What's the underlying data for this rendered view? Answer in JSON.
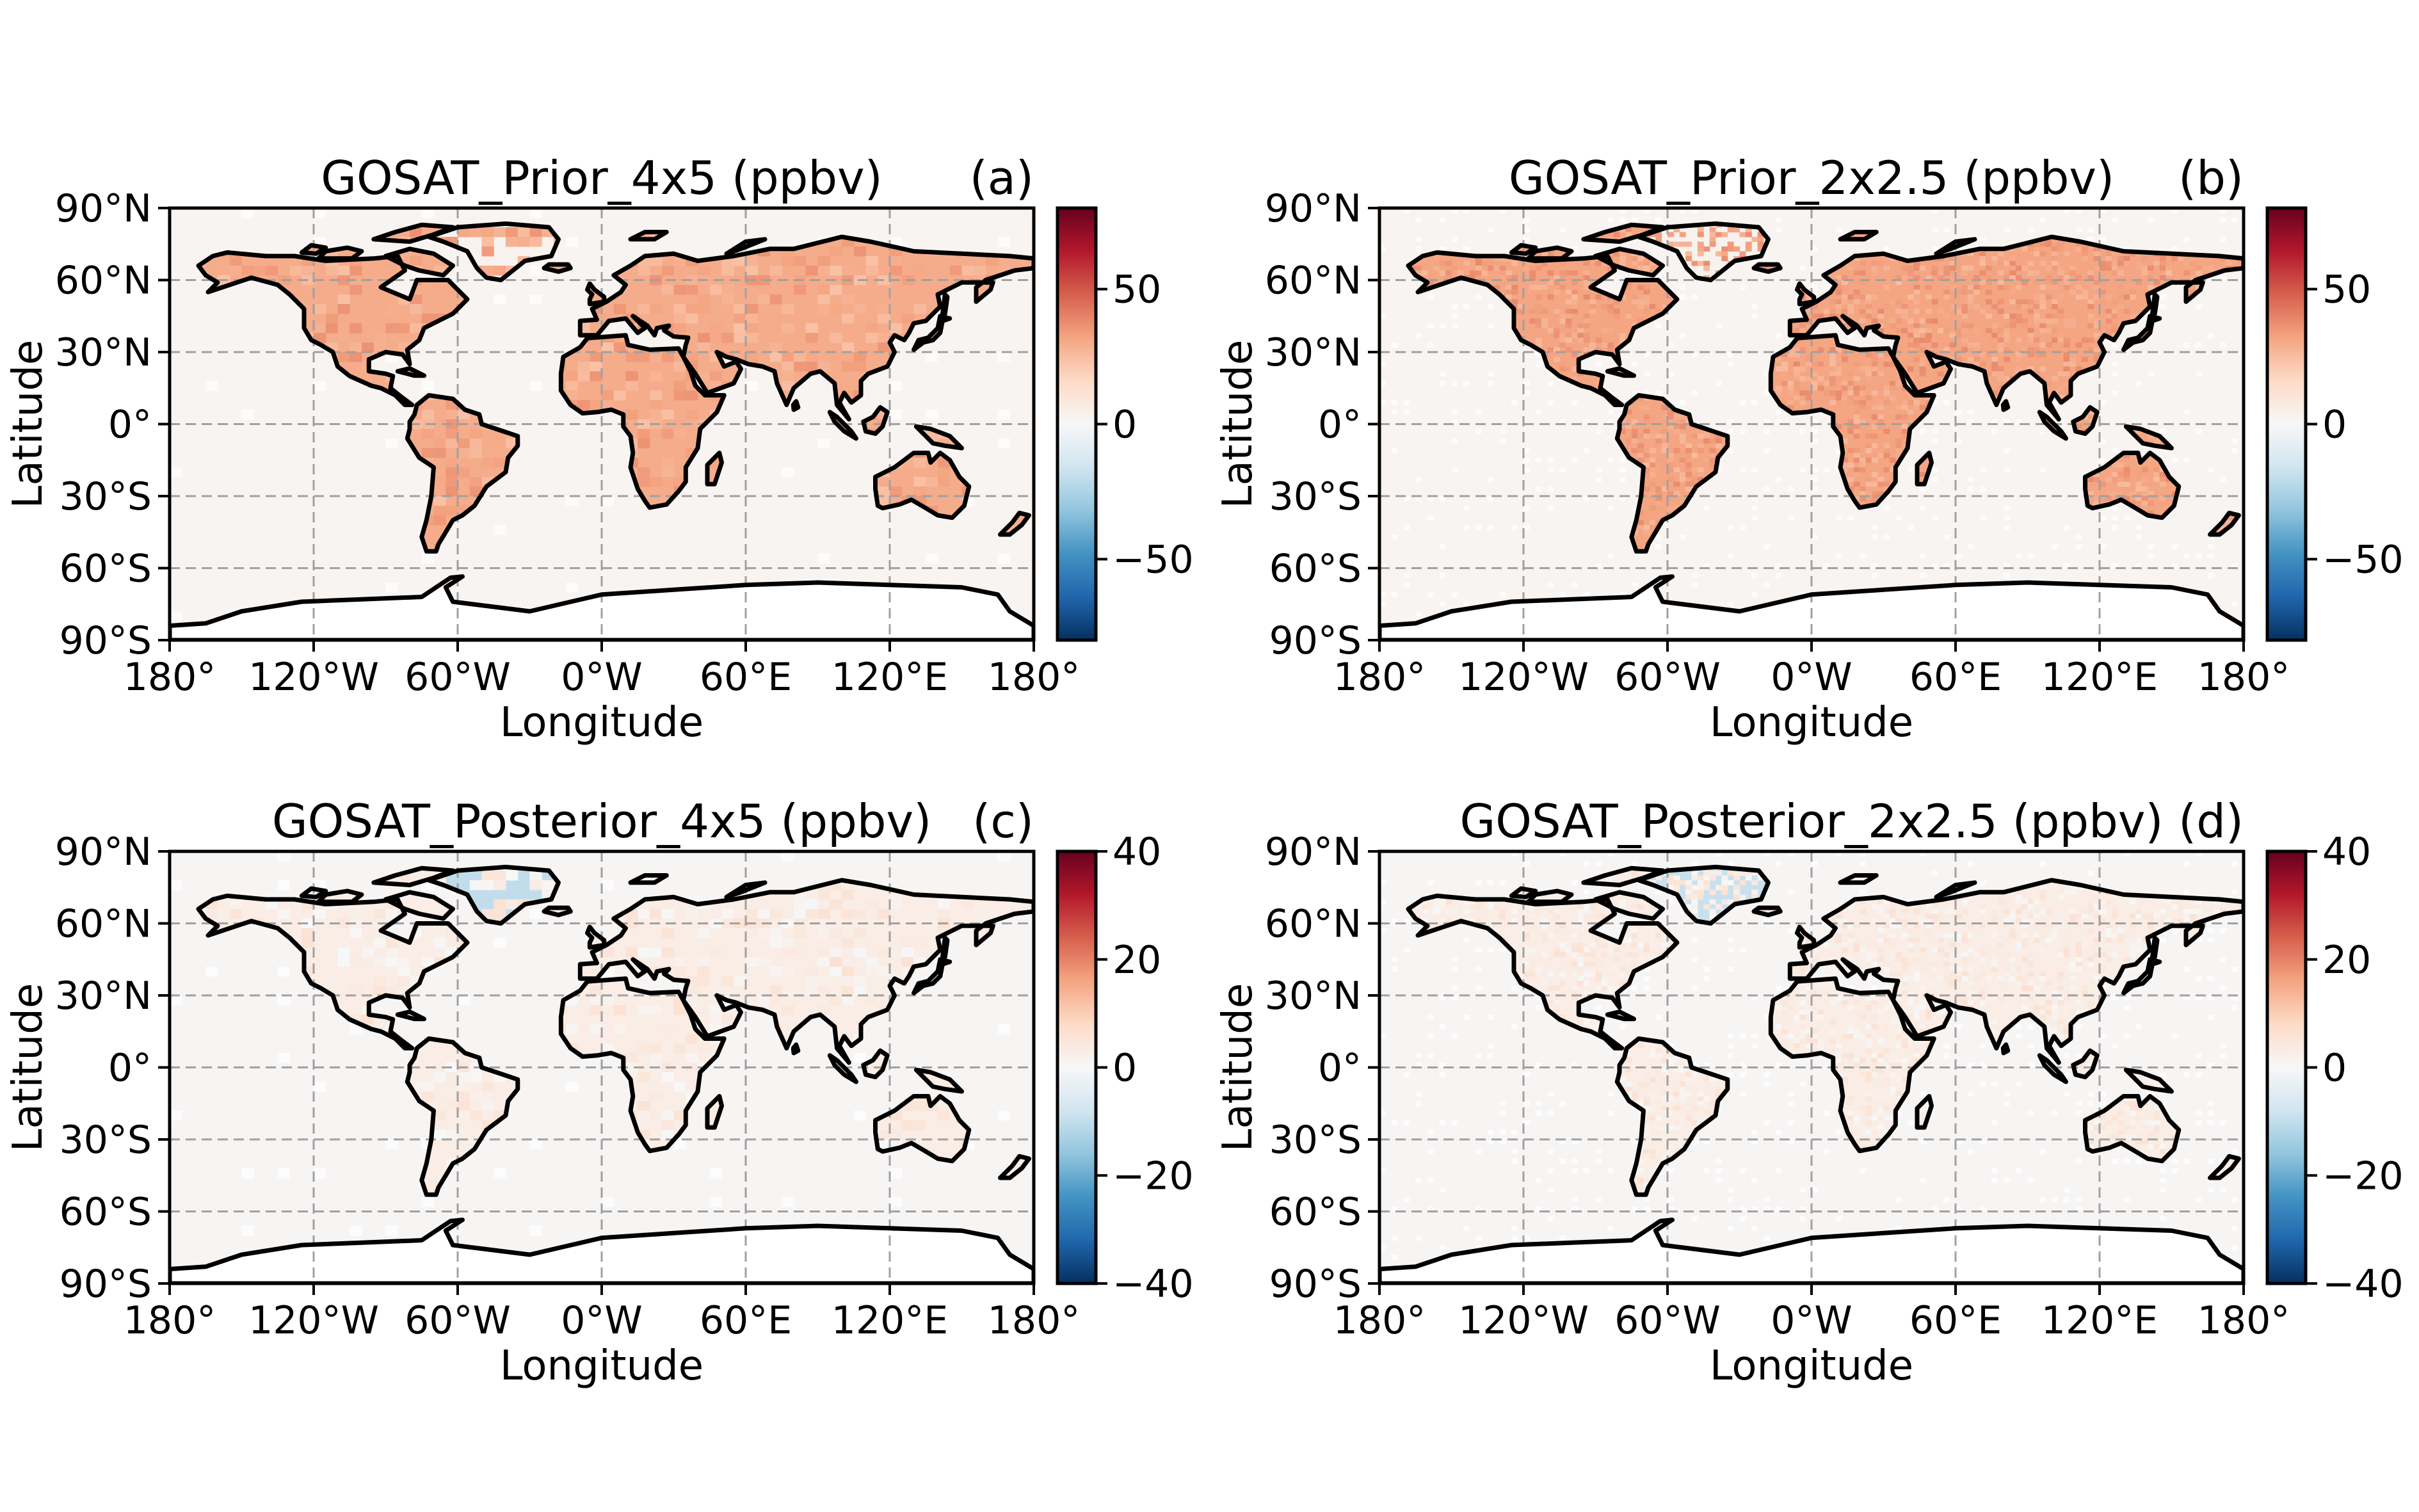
{
  "figure": {
    "panels": [
      {
        "id": "a",
        "title": "GOSAT_Prior_4x5 (ppbv)",
        "letter": "(a)",
        "xlabel": "Longitude",
        "ylabel": "Latitude",
        "xticks": [
          "180°",
          "120°W",
          "60°W",
          "0°W",
          "60°E",
          "120°E",
          "180°"
        ],
        "yticks": [
          "90°N",
          "60°N",
          "30°N",
          "0°",
          "30°S",
          "60°S",
          "90°S"
        ],
        "colorbar": {
          "ticks": [
            50,
            0,
            -50
          ],
          "tick_labels": [
            "50",
            "0",
            "−50"
          ],
          "vmin": -80,
          "vmax": 80
        },
        "land_anomaly": 30,
        "ocean_anomaly": 2,
        "greenland_anomaly": 3,
        "resolution": "4x5"
      },
      {
        "id": "b",
        "title": "GOSAT_Prior_2x2.5 (ppbv)",
        "letter": "(b)",
        "xlabel": "Longitude",
        "ylabel": "Latitude",
        "xticks": [
          "180°",
          "120°W",
          "60°W",
          "0°W",
          "60°E",
          "120°E",
          "180°"
        ],
        "yticks": [
          "90°N",
          "60°N",
          "30°N",
          "0°",
          "30°S",
          "60°S",
          "90°S"
        ],
        "colorbar": {
          "ticks": [
            50,
            0,
            -50
          ],
          "tick_labels": [
            "50",
            "0",
            "−50"
          ],
          "vmin": -80,
          "vmax": 80
        },
        "land_anomaly": 32,
        "ocean_anomaly": 2,
        "greenland_anomaly": 3,
        "resolution": "2x2.5"
      },
      {
        "id": "c",
        "title": "GOSAT_Posterior_4x5 (ppbv)",
        "letter": "(c)",
        "xlabel": "Longitude",
        "ylabel": "Latitude",
        "xticks": [
          "180°",
          "120°W",
          "60°W",
          "0°W",
          "60°E",
          "120°E",
          "180°"
        ],
        "yticks": [
          "90°N",
          "60°N",
          "30°N",
          "0°",
          "30°S",
          "60°S",
          "90°S"
        ],
        "colorbar": {
          "ticks": [
            40,
            20,
            0,
            -20,
            -40
          ],
          "tick_labels": [
            "40",
            "20",
            "0",
            "−20",
            "−40"
          ],
          "vmin": -40,
          "vmax": 40
        },
        "land_anomaly": 3,
        "ocean_anomaly": 0.5,
        "greenland_anomaly": -10,
        "resolution": "4x5"
      },
      {
        "id": "d",
        "title": "GOSAT_Posterior_2x2.5 (ppbv)",
        "letter": "(d)",
        "xlabel": "Longitude",
        "ylabel": "Latitude",
        "xticks": [
          "180°",
          "120°W",
          "60°W",
          "0°W",
          "60°E",
          "120°E",
          "180°"
        ],
        "yticks": [
          "90°N",
          "60°N",
          "30°N",
          "0°",
          "30°S",
          "60°S",
          "90°S"
        ],
        "colorbar": {
          "ticks": [
            40,
            20,
            0,
            -20,
            -40
          ],
          "tick_labels": [
            "40",
            "20",
            "0",
            "−20",
            "−40"
          ],
          "vmin": -40,
          "vmax": 40
        },
        "land_anomaly": 3,
        "ocean_anomaly": 0.5,
        "greenland_anomaly": -9,
        "resolution": "2x2.5"
      }
    ],
    "colormap": "RdBu_r",
    "grid": true
  }
}
